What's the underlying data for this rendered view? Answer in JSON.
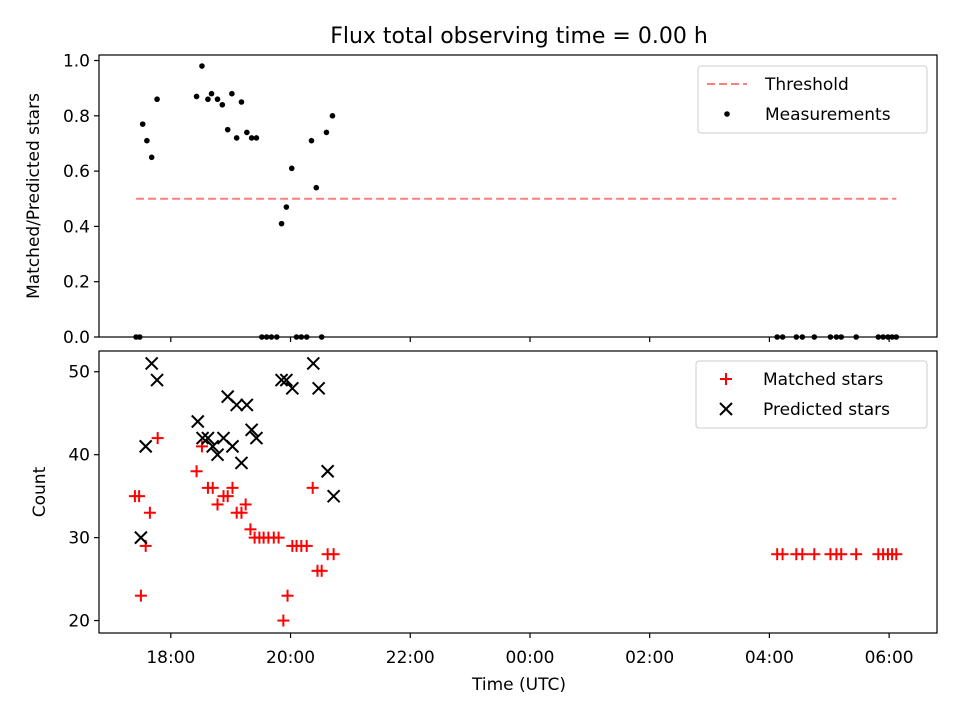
{
  "chart_data": [
    {
      "type": "scatter",
      "title": "Flux total observing time = 0.00 h",
      "xlabel": "",
      "ylabel": "Matched/Predicted stars",
      "xlim": [
        16.8,
        30.8
      ],
      "ylim": [
        0.0,
        1.02
      ],
      "yticks": [
        0.0,
        0.2,
        0.4,
        0.6,
        0.8,
        1.0
      ],
      "ytick_labels": [
        "0.0",
        "0.2",
        "0.4",
        "0.6",
        "0.8",
        "1.0"
      ],
      "legend": {
        "position": "top-right",
        "threshold_label": "Threshold",
        "measurements_label": "Measurements"
      },
      "threshold": {
        "value": 0.5,
        "x_start": 17.42,
        "x_end": 30.12,
        "color": "#ff7f7f",
        "style": "dashed"
      },
      "series": [
        {
          "name": "Measurements",
          "color": "#000000",
          "points": [
            [
              17.42,
              0.0
            ],
            [
              17.48,
              0.0
            ],
            [
              17.53,
              0.77
            ],
            [
              17.6,
              0.71
            ],
            [
              17.68,
              0.65
            ],
            [
              17.77,
              0.86
            ],
            [
              18.43,
              0.87
            ],
            [
              18.52,
              0.98
            ],
            [
              18.62,
              0.86
            ],
            [
              18.68,
              0.88
            ],
            [
              18.78,
              0.86
            ],
            [
              18.86,
              0.84
            ],
            [
              18.95,
              0.75
            ],
            [
              19.02,
              0.88
            ],
            [
              19.1,
              0.72
            ],
            [
              19.18,
              0.85
            ],
            [
              19.27,
              0.74
            ],
            [
              19.35,
              0.72
            ],
            [
              19.43,
              0.72
            ],
            [
              19.52,
              0.0
            ],
            [
              19.6,
              0.0
            ],
            [
              19.68,
              0.0
            ],
            [
              19.77,
              0.0
            ],
            [
              19.85,
              0.41
            ],
            [
              19.93,
              0.47
            ],
            [
              20.02,
              0.61
            ],
            [
              20.1,
              0.0
            ],
            [
              20.18,
              0.0
            ],
            [
              20.27,
              0.0
            ],
            [
              20.35,
              0.71
            ],
            [
              20.43,
              0.54
            ],
            [
              20.52,
              0.0
            ],
            [
              20.6,
              0.74
            ],
            [
              20.7,
              0.8
            ],
            [
              28.13,
              0.0
            ],
            [
              28.22,
              0.0
            ],
            [
              28.45,
              0.0
            ],
            [
              28.55,
              0.0
            ],
            [
              28.75,
              0.0
            ],
            [
              29.02,
              0.0
            ],
            [
              29.12,
              0.0
            ],
            [
              29.2,
              0.0
            ],
            [
              29.45,
              0.0
            ],
            [
              29.82,
              0.0
            ],
            [
              29.9,
              0.0
            ],
            [
              29.98,
              0.0
            ],
            [
              30.05,
              0.0
            ],
            [
              30.12,
              0.0
            ]
          ]
        }
      ]
    },
    {
      "type": "scatter",
      "title": "",
      "xlabel": "Time (UTC)",
      "ylabel": "Count",
      "xlim": [
        16.8,
        30.8
      ],
      "ylim": [
        18.5,
        52.5
      ],
      "yticks": [
        20,
        30,
        40,
        50
      ],
      "ytick_labels": [
        "20",
        "30",
        "40",
        "50"
      ],
      "xticks": [
        18,
        20,
        22,
        24,
        26,
        28,
        30
      ],
      "xtick_labels": [
        "18:00",
        "20:00",
        "22:00",
        "00:00",
        "02:00",
        "04:00",
        "06:00"
      ],
      "legend": {
        "position": "top-right",
        "matched_label": "Matched stars",
        "predicted_label": "Predicted stars"
      },
      "series": [
        {
          "name": "Matched stars",
          "marker": "plus",
          "color": "#ff0000",
          "points": [
            [
              17.4,
              35
            ],
            [
              17.47,
              35
            ],
            [
              17.5,
              23
            ],
            [
              17.58,
              29
            ],
            [
              17.65,
              33
            ],
            [
              17.78,
              42
            ],
            [
              18.43,
              38
            ],
            [
              18.52,
              41
            ],
            [
              18.62,
              36
            ],
            [
              18.7,
              36
            ],
            [
              18.78,
              34
            ],
            [
              18.88,
              35
            ],
            [
              18.95,
              35
            ],
            [
              19.03,
              36
            ],
            [
              19.1,
              33
            ],
            [
              19.18,
              33
            ],
            [
              19.25,
              34
            ],
            [
              19.33,
              31
            ],
            [
              19.4,
              30
            ],
            [
              19.48,
              30
            ],
            [
              19.55,
              30
            ],
            [
              19.63,
              30
            ],
            [
              19.72,
              30
            ],
            [
              19.8,
              30
            ],
            [
              19.88,
              20
            ],
            [
              19.95,
              23
            ],
            [
              20.03,
              29
            ],
            [
              20.1,
              29
            ],
            [
              20.18,
              29
            ],
            [
              20.27,
              29
            ],
            [
              20.37,
              36
            ],
            [
              20.45,
              26
            ],
            [
              20.52,
              26
            ],
            [
              20.62,
              28
            ],
            [
              20.72,
              28
            ],
            [
              28.13,
              28
            ],
            [
              28.22,
              28
            ],
            [
              28.45,
              28
            ],
            [
              28.55,
              28
            ],
            [
              28.75,
              28
            ],
            [
              29.02,
              28
            ],
            [
              29.12,
              28
            ],
            [
              29.2,
              28
            ],
            [
              29.45,
              28
            ],
            [
              29.82,
              28
            ],
            [
              29.9,
              28
            ],
            [
              29.98,
              28
            ],
            [
              30.05,
              28
            ],
            [
              30.12,
              28
            ]
          ]
        },
        {
          "name": "Predicted stars",
          "marker": "x",
          "color": "#000000",
          "points": [
            [
              17.5,
              30
            ],
            [
              17.58,
              41
            ],
            [
              17.68,
              51
            ],
            [
              17.77,
              49
            ],
            [
              18.45,
              44
            ],
            [
              18.53,
              42
            ],
            [
              18.62,
              42
            ],
            [
              18.7,
              41
            ],
            [
              18.78,
              40
            ],
            [
              18.88,
              42
            ],
            [
              18.95,
              47
            ],
            [
              19.03,
              41
            ],
            [
              19.1,
              46
            ],
            [
              19.18,
              39
            ],
            [
              19.27,
              46
            ],
            [
              19.35,
              43
            ],
            [
              19.43,
              42
            ],
            [
              19.85,
              49
            ],
            [
              19.93,
              49
            ],
            [
              20.03,
              48
            ],
            [
              20.38,
              51
            ],
            [
              20.47,
              48
            ],
            [
              20.62,
              38
            ],
            [
              20.72,
              35
            ]
          ]
        }
      ]
    }
  ]
}
